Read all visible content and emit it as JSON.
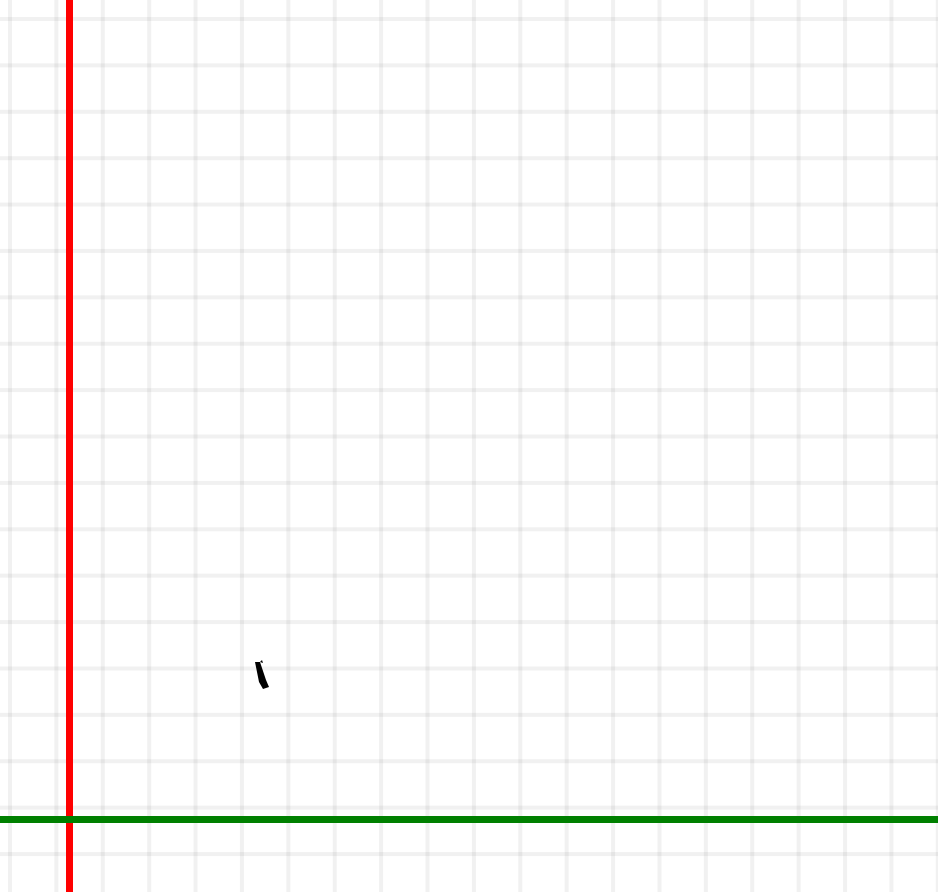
{
  "viewport": {
    "type": "cad-sketch-canvas",
    "background_color": "#ffffff",
    "grid": {
      "visible": true,
      "color": "#eeeeee"
    },
    "axes": {
      "x_axis": {
        "color": "#008000"
      },
      "y_axis": {
        "color": "#ff0000"
      }
    },
    "cursor": {
      "icon": "pencil-icon",
      "color": "#000000"
    }
  }
}
